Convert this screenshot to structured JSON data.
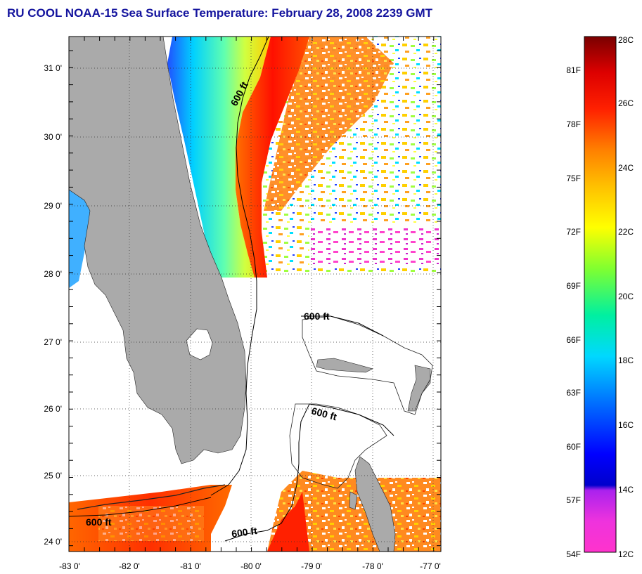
{
  "title": "RU COOL  NOAA-15  Sea Surface Temperature:  February 28, 2008 2239 GMT",
  "map": {
    "lat_labels": [
      "31 0'",
      "30 0'",
      "29 0'",
      "28 0'",
      "27 0'",
      "26 0'",
      "25 0'",
      "24 0'"
    ],
    "lon_labels": [
      "-83 0'",
      "-82 0'",
      "-81 0'",
      "-80 0'",
      "-79 0'",
      "-78 0'",
      "-77 0'"
    ],
    "lat_range": [
      23.9,
      31.4
    ],
    "lon_range": [
      -83,
      -76.9
    ],
    "contour_labels": [
      "600 ft",
      "600 ft",
      "600 ft",
      "600 ft",
      "600 ft"
    ],
    "colors": {
      "land": "#aaaaaa",
      "no_data": "#ffffff",
      "grid": "#555555"
    }
  },
  "colorbar": {
    "celsius_labels": [
      "28C",
      "26C",
      "24C",
      "22C",
      "20C",
      "18C",
      "16C",
      "14C",
      "12C"
    ],
    "fahrenheit_labels": [
      "81F",
      "78F",
      "75F",
      "72F",
      "69F",
      "66F",
      "63F",
      "60F",
      "57F",
      "54F"
    ],
    "celsius_range": [
      12,
      28
    ],
    "colors": [
      "#ff33cc",
      "#cc22dd",
      "#3300cc",
      "#0000ff",
      "#0080ff",
      "#00e0ff",
      "#00ff80",
      "#a0ff00",
      "#ffff00",
      "#ffb000",
      "#ff6000",
      "#ff0000",
      "#cc0000",
      "#7a0000"
    ]
  }
}
